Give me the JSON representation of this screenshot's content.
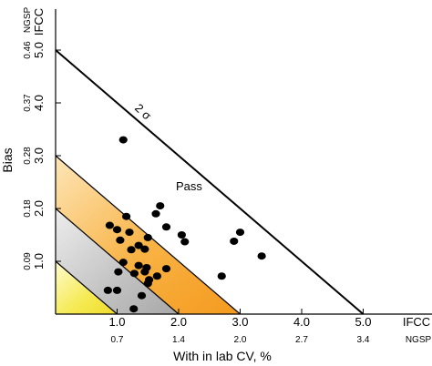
{
  "chart_data": {
    "type": "scatter",
    "title": "",
    "xlabel": "With in lab CV, %",
    "ylabel": "Bias",
    "x_axis": {
      "unit_label": "IFCC",
      "secondary_unit_label": "NGSP",
      "range": [
        0,
        5.0
      ],
      "ticks": [
        "1.0",
        "2.0",
        "3.0",
        "4.0",
        "5.0"
      ],
      "secondary_ticks": [
        "0.7",
        "1.4",
        "2.0",
        "2.7",
        "3.4"
      ]
    },
    "y_axis": {
      "unit_label": "IFCC",
      "secondary_unit_label": "NGSP",
      "range": [
        0,
        5.0
      ],
      "ticks": [
        "1.0",
        "2.0",
        "3.0",
        "4.0",
        "5.0"
      ],
      "secondary_ticks": [
        "0.09",
        "0.18",
        "0.28",
        "0.37",
        "0.46"
      ]
    },
    "grid": false,
    "annotations": [
      "2 σ",
      "Pass"
    ],
    "limit_lines": [
      {
        "label": "2 σ",
        "sum": 5.0
      },
      {
        "label": "",
        "sum": 3.0
      },
      {
        "label": "",
        "sum": 2.0
      },
      {
        "label": "",
        "sum": 1.0
      }
    ],
    "colors": {
      "band_outer": "#f7a93a",
      "band_middle": "#b5b5b5",
      "band_inner": "#f3e94a",
      "points": "#000000"
    },
    "points": [
      {
        "x": 1.1,
        "y": 3.3
      },
      {
        "x": 1.7,
        "y": 2.05
      },
      {
        "x": 1.63,
        "y": 1.9
      },
      {
        "x": 1.15,
        "y": 1.85
      },
      {
        "x": 1.8,
        "y": 1.65
      },
      {
        "x": 0.88,
        "y": 1.68
      },
      {
        "x": 1.0,
        "y": 1.6
      },
      {
        "x": 1.2,
        "y": 1.55
      },
      {
        "x": 2.05,
        "y": 1.5
      },
      {
        "x": 1.5,
        "y": 1.45
      },
      {
        "x": 2.1,
        "y": 1.37
      },
      {
        "x": 1.05,
        "y": 1.4
      },
      {
        "x": 1.35,
        "y": 1.3
      },
      {
        "x": 1.45,
        "y": 1.23
      },
      {
        "x": 1.23,
        "y": 1.22
      },
      {
        "x": 3.0,
        "y": 1.55
      },
      {
        "x": 2.9,
        "y": 1.38
      },
      {
        "x": 3.35,
        "y": 1.1
      },
      {
        "x": 1.1,
        "y": 0.98
      },
      {
        "x": 1.35,
        "y": 0.92
      },
      {
        "x": 1.48,
        "y": 0.88
      },
      {
        "x": 1.8,
        "y": 0.86
      },
      {
        "x": 1.45,
        "y": 0.8
      },
      {
        "x": 1.02,
        "y": 0.8
      },
      {
        "x": 1.28,
        "y": 0.77
      },
      {
        "x": 1.65,
        "y": 0.72
      },
      {
        "x": 1.52,
        "y": 0.65
      },
      {
        "x": 2.7,
        "y": 0.72
      },
      {
        "x": 1.5,
        "y": 0.58
      },
      {
        "x": 0.85,
        "y": 0.45
      },
      {
        "x": 1.0,
        "y": 0.45
      },
      {
        "x": 1.4,
        "y": 0.35
      },
      {
        "x": 1.27,
        "y": 0.1
      }
    ]
  }
}
